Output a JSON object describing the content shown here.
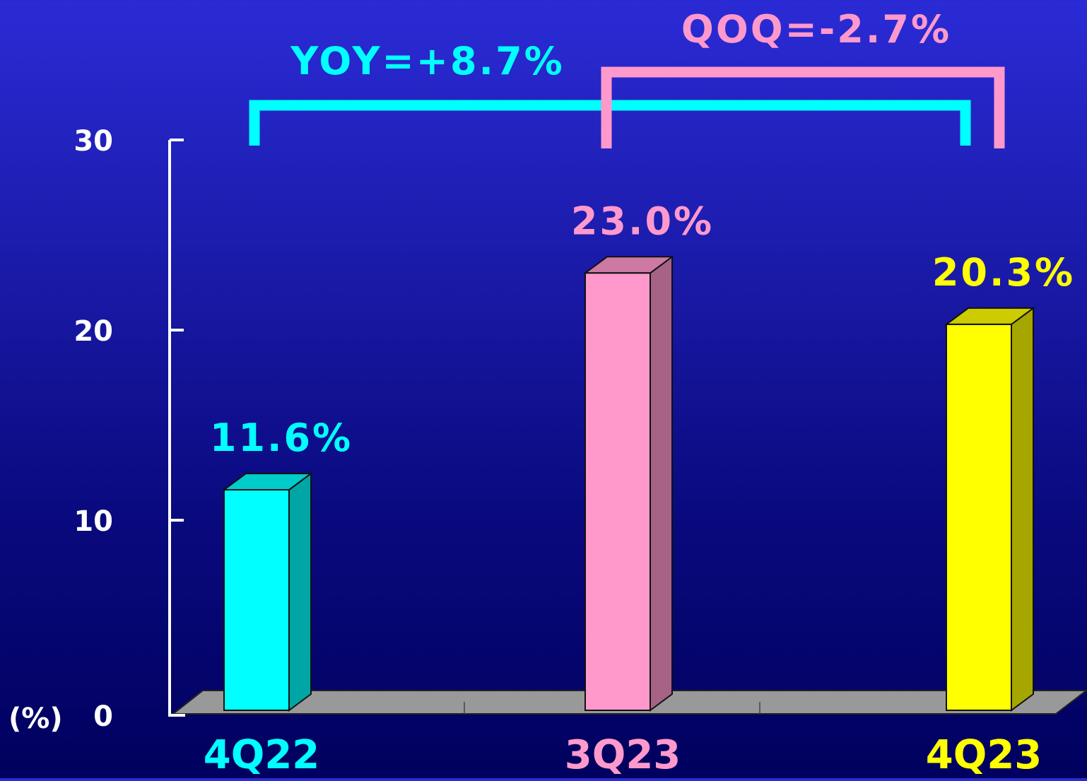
{
  "chart_data": {
    "type": "bar",
    "categories": [
      "4Q22",
      "3Q23",
      "4Q23"
    ],
    "values": [
      11.6,
      23.0,
      20.3
    ],
    "value_labels": [
      "11.6%",
      "23.0%",
      "20.3%"
    ],
    "y_ticks": [
      "0",
      "10",
      "20",
      "30"
    ],
    "y_unit": "(%)",
    "ylim": [
      0,
      30
    ],
    "bar_colors": [
      "#00ffff",
      "#ff99cc",
      "#ffff00"
    ],
    "annotations": [
      {
        "text": "YOY=+8.7%",
        "from": "4Q22",
        "to": "4Q23",
        "color": "#00ffff"
      },
      {
        "text": "QOQ=-2.7%",
        "from": "3Q23",
        "to": "4Q23",
        "color": "#ff99cc"
      }
    ],
    "floor_color": "#999999",
    "axis_color": "#ffffff",
    "style": "3d"
  }
}
